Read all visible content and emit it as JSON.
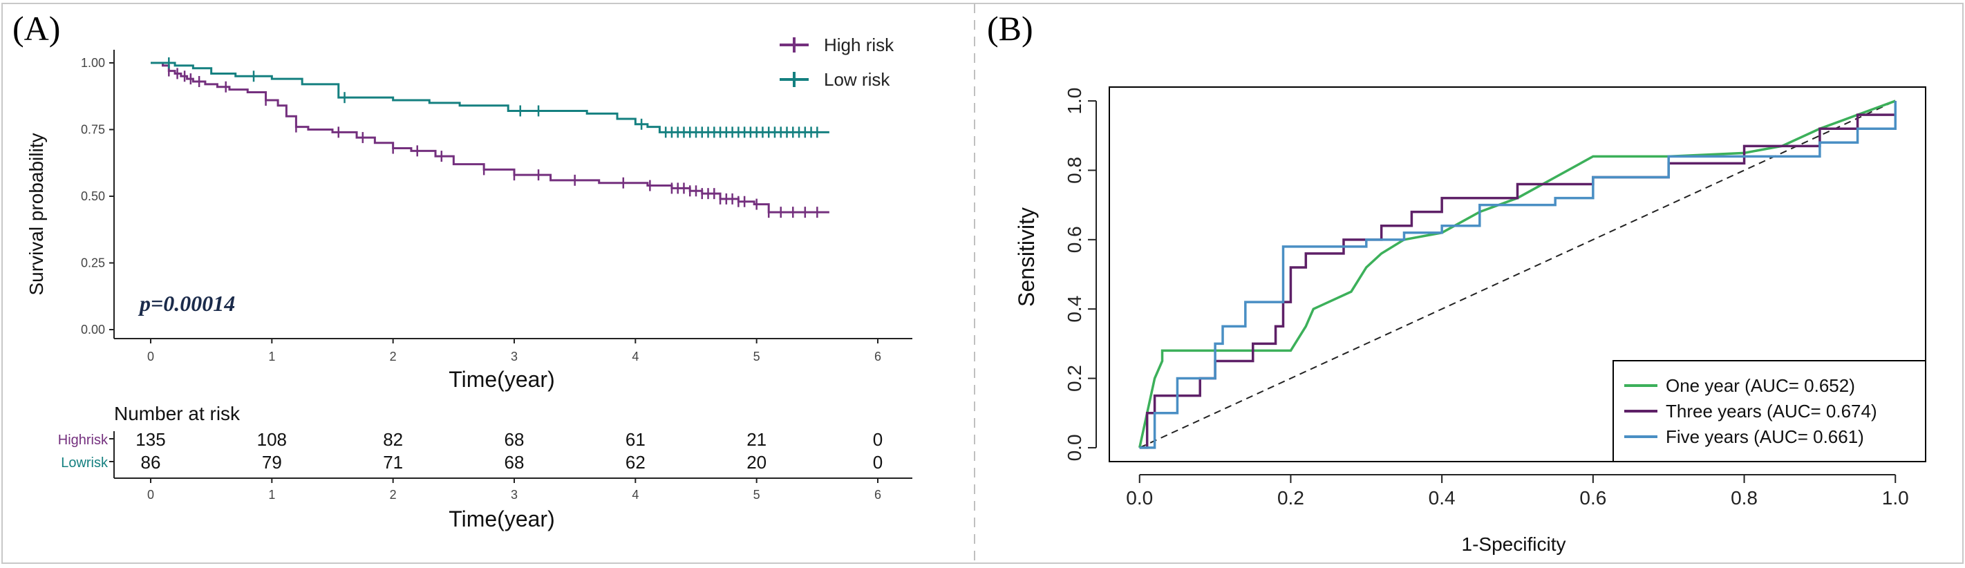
{
  "panel_labels": {
    "a": "(A)",
    "b": "(B)"
  },
  "chart_data": [
    {
      "type": "line",
      "subtype": "kaplan-meier",
      "title": "",
      "xlabel": "Time(year)",
      "ylabel": "Survival probability",
      "xlim": [
        0,
        6
      ],
      "ylim": [
        0,
        1
      ],
      "xticks": [
        "0",
        "1",
        "2",
        "3",
        "4",
        "5",
        "6"
      ],
      "yticks": [
        "0.00",
        "0.25",
        "0.50",
        "0.75",
        "1.00"
      ],
      "pvalue": "p=0.00014",
      "legend_position": "top-right",
      "series": [
        {
          "name": "High risk",
          "color": "#74307e",
          "x": [
            0,
            0.1,
            0.15,
            0.2,
            0.25,
            0.3,
            0.35,
            0.45,
            0.55,
            0.65,
            0.8,
            0.95,
            1.05,
            1.12,
            1.2,
            1.3,
            1.5,
            1.7,
            1.85,
            2.0,
            2.15,
            2.35,
            2.5,
            2.75,
            3.0,
            3.3,
            3.7,
            4.1,
            4.3,
            4.45,
            4.55,
            4.7,
            4.85,
            4.98,
            5.1,
            5.6
          ],
          "y": [
            1.0,
            0.99,
            0.97,
            0.96,
            0.95,
            0.94,
            0.93,
            0.92,
            0.91,
            0.9,
            0.89,
            0.86,
            0.84,
            0.8,
            0.76,
            0.75,
            0.74,
            0.72,
            0.7,
            0.68,
            0.67,
            0.65,
            0.62,
            0.6,
            0.58,
            0.56,
            0.55,
            0.54,
            0.53,
            0.52,
            0.51,
            0.49,
            0.48,
            0.47,
            0.44,
            0.44
          ],
          "censor_x": [
            0.15,
            0.22,
            0.28,
            0.33,
            0.4,
            0.62,
            0.95,
            1.2,
            1.55,
            1.75,
            2.0,
            2.2,
            2.4,
            2.75,
            3.0,
            3.2,
            3.5,
            3.9,
            4.12,
            4.3,
            4.35,
            4.4,
            4.45,
            4.5,
            4.55,
            4.6,
            4.65,
            4.7,
            4.75,
            4.8,
            4.85,
            4.9,
            5.0,
            5.1,
            5.2,
            5.3,
            5.4,
            5.5
          ]
        },
        {
          "name": "Low risk",
          "color": "#158080",
          "x": [
            0,
            0.2,
            0.35,
            0.5,
            0.7,
            1.0,
            1.25,
            1.55,
            2.0,
            2.3,
            2.55,
            2.95,
            3.6,
            3.85,
            4.0,
            4.1,
            4.2,
            5.6
          ],
          "y": [
            1.0,
            0.99,
            0.98,
            0.96,
            0.95,
            0.94,
            0.92,
            0.87,
            0.86,
            0.85,
            0.84,
            0.82,
            0.81,
            0.79,
            0.77,
            0.76,
            0.74,
            0.74
          ],
          "censor_x": [
            0.15,
            0.85,
            1.6,
            3.05,
            3.2,
            4.05,
            4.25,
            4.3,
            4.35,
            4.4,
            4.45,
            4.5,
            4.55,
            4.6,
            4.65,
            4.7,
            4.75,
            4.8,
            4.85,
            4.9,
            4.95,
            5.0,
            5.05,
            5.1,
            5.15,
            5.2,
            5.25,
            5.3,
            5.35,
            5.4,
            5.45,
            5.5
          ]
        }
      ],
      "risk_table": {
        "title": "Number at risk",
        "xlabel": "Time(year)",
        "times": [
          "0",
          "1",
          "2",
          "3",
          "4",
          "5",
          "6"
        ],
        "rows": [
          {
            "label": "Highrisk",
            "color": "#74307e",
            "counts": [
              "135",
              "108",
              "82",
              "68",
              "61",
              "21",
              "0"
            ]
          },
          {
            "label": "Lowrisk",
            "color": "#158080",
            "counts": [
              "86",
              "79",
              "71",
              "68",
              "62",
              "20",
              "0"
            ]
          }
        ]
      }
    },
    {
      "type": "line",
      "subtype": "roc",
      "title": "",
      "xlabel": "1-Specificity",
      "ylabel": "Sensitivity",
      "xlim": [
        -0.04,
        1.04
      ],
      "ylim": [
        -0.04,
        1.04
      ],
      "xticks": [
        "0.0",
        "0.2",
        "0.4",
        "0.6",
        "0.8",
        "1.0"
      ],
      "yticks": [
        "0.0",
        "0.2",
        "0.4",
        "0.6",
        "0.8",
        "1.0"
      ],
      "legend_position": "bottom-right",
      "series": [
        {
          "name": "One year (AUC= 0.652)",
          "color": "#3cb05a",
          "x": [
            0,
            0.01,
            0.02,
            0.03,
            0.03,
            0.1,
            0.2,
            0.22,
            0.23,
            0.28,
            0.3,
            0.32,
            0.35,
            0.4,
            0.45,
            0.5,
            0.55,
            0.6,
            0.62,
            0.7,
            0.8,
            0.85,
            0.9,
            0.95,
            1.0
          ],
          "y": [
            0,
            0.1,
            0.2,
            0.25,
            0.28,
            0.28,
            0.28,
            0.35,
            0.4,
            0.45,
            0.52,
            0.56,
            0.6,
            0.62,
            0.68,
            0.72,
            0.78,
            0.84,
            0.84,
            0.84,
            0.85,
            0.87,
            0.92,
            0.96,
            1.0
          ]
        },
        {
          "name": "Three years (AUC= 0.674)",
          "color": "#5e2067",
          "x": [
            0,
            0.01,
            0.02,
            0.08,
            0.1,
            0.15,
            0.18,
            0.19,
            0.2,
            0.22,
            0.27,
            0.32,
            0.36,
            0.4,
            0.5,
            0.6,
            0.7,
            0.8,
            0.9,
            0.95,
            1.0
          ],
          "y": [
            0,
            0.1,
            0.15,
            0.2,
            0.25,
            0.3,
            0.35,
            0.42,
            0.52,
            0.56,
            0.6,
            0.64,
            0.68,
            0.72,
            0.76,
            0.78,
            0.82,
            0.87,
            0.92,
            0.96,
            1.0
          ],
          "step": true
        },
        {
          "name": "Five years (AUC= 0.661)",
          "color": "#4a8fc4",
          "x": [
            0,
            0.02,
            0.05,
            0.1,
            0.11,
            0.14,
            0.19,
            0.2,
            0.25,
            0.3,
            0.35,
            0.4,
            0.45,
            0.55,
            0.6,
            0.7,
            0.8,
            0.9,
            0.95,
            1.0
          ],
          "y": [
            0,
            0.1,
            0.2,
            0.3,
            0.35,
            0.42,
            0.58,
            0.58,
            0.58,
            0.6,
            0.62,
            0.64,
            0.7,
            0.72,
            0.78,
            0.84,
            0.84,
            0.88,
            0.92,
            1.0
          ],
          "step": true
        }
      ],
      "reference_line": {
        "x": [
          0,
          1
        ],
        "y": [
          0,
          1
        ],
        "style": "dashed"
      }
    }
  ]
}
